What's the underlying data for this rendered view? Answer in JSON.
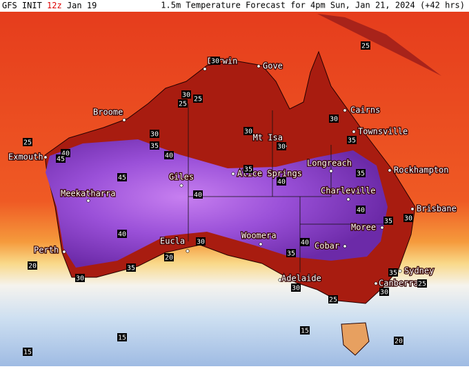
{
  "header": {
    "init_label": "GFS INIT",
    "init_hour": "12z",
    "init_date": "Jan 19",
    "title": "1.5m Temperature Forecast for 4pm Sun, Jan 21, 2024 (+42 hrs)"
  },
  "cities": [
    "Darwin",
    "Gove",
    "Broome",
    "Cairns",
    "Townsville",
    "Mt Isa",
    "Exmouth",
    "Longreach",
    "Rockhampton",
    "Giles",
    "Alice Springs",
    "Meekatharra",
    "Charleville",
    "Brisbane",
    "Moree",
    "Perth",
    "Eucla",
    "Woomera",
    "Cobar",
    "Sydney",
    "Adelaide",
    "Canberra"
  ],
  "contour_labels": [
    30,
    30,
    25,
    25,
    30,
    35,
    40,
    40,
    45,
    25,
    30,
    30,
    35,
    40,
    30,
    35,
    35,
    45,
    40,
    40,
    40,
    35,
    30,
    30,
    20,
    40,
    35,
    35,
    30,
    20,
    25,
    35,
    25,
    30,
    30,
    25,
    15,
    15,
    15,
    20
  ]
}
